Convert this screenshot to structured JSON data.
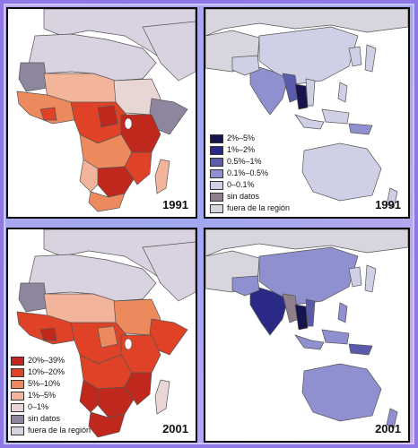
{
  "colors": {
    "af_20_39": "#c0281e",
    "af_10_20": "#df4226",
    "af_5_10": "#ec8a5e",
    "af_1_5": "#f2b49a",
    "af_0_1": "#e8d6d4",
    "no_data": "#8e869e",
    "out_region": "#d9d2e0",
    "as_2_5": "#17134c",
    "as_1_2": "#2a2a86",
    "as_05_1": "#5a5cab",
    "as_01_05": "#8f90d0",
    "as_0_01": "#cfd0e6",
    "as_no_data": "#8f7f8a",
    "as_out_region": "#d9d5df"
  },
  "panels": {
    "africa_1991": {
      "year": "1991"
    },
    "asia_1991": {
      "year": "1991",
      "legend": [
        {
          "label": "2%–5%",
          "color": "#17134c"
        },
        {
          "label": "1%–2%",
          "color": "#2a2a86"
        },
        {
          "label": "0.5%–1%",
          "color": "#5a5cab"
        },
        {
          "label": "0.1%–0.5%",
          "color": "#8f90d0"
        },
        {
          "label": "0–0.1%",
          "color": "#cfd0e6"
        },
        {
          "label": "sin datos",
          "color": "#8f7f8a"
        },
        {
          "label": "fuera de la región",
          "color": "#d9d5df"
        }
      ]
    },
    "africa_2001": {
      "year": "2001",
      "legend": [
        {
          "label": "20%–39%",
          "color": "#c0281e"
        },
        {
          "label": "10%–20%",
          "color": "#df4226"
        },
        {
          "label": "5%–10%",
          "color": "#ec8a5e"
        },
        {
          "label": "1%–5%",
          "color": "#f2b49a"
        },
        {
          "label": "0–1%",
          "color": "#e8d6d4"
        },
        {
          "label": "sin datos",
          "color": "#8e869e"
        },
        {
          "label": "fuera de la región",
          "color": "#d9d2e0"
        }
      ]
    },
    "asia_2001": {
      "year": "2001"
    }
  }
}
